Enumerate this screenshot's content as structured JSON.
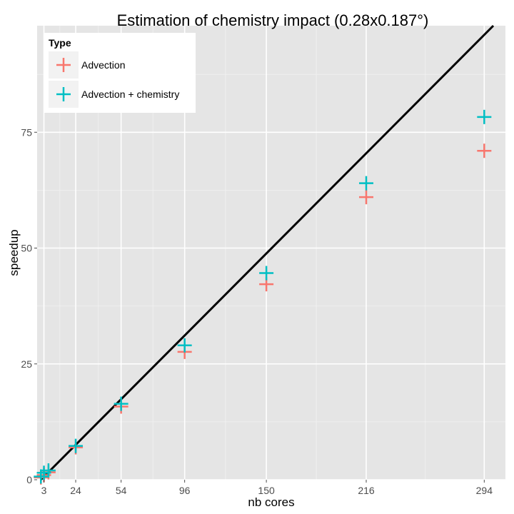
{
  "chart_data": {
    "type": "scatter",
    "title": "Estimation of chemistry impact (0.28x0.187°)",
    "xlabel": "nb cores",
    "ylabel": "speedup",
    "x_ticks": [
      3,
      24,
      54,
      96,
      150,
      216,
      294
    ],
    "y_ticks": [
      0,
      25,
      50,
      75
    ],
    "xlim": [
      -1.5,
      308
    ],
    "ylim": [
      0,
      98
    ],
    "grid": true,
    "legend": {
      "title": "Type",
      "position": "top-left"
    },
    "series": [
      {
        "name": "Advection",
        "color": "#F8766D",
        "marker": "plus",
        "x": [
          1,
          3,
          6,
          24,
          54,
          96,
          150,
          216,
          294
        ],
        "y": [
          0.5,
          1.0,
          1.6,
          7.0,
          15.8,
          27.6,
          42.2,
          61.0,
          71.0
        ]
      },
      {
        "name": "Advection + chemistry",
        "color": "#00BFC4",
        "marker": "plus",
        "x": [
          1,
          3,
          6,
          24,
          54,
          96,
          150,
          216,
          294
        ],
        "y": [
          0.7,
          1.5,
          2.0,
          7.3,
          16.4,
          29.0,
          44.6,
          64.0,
          78.3
        ]
      }
    ],
    "reference_line": {
      "color": "#000000",
      "x": [
        1,
        300
      ],
      "y": [
        0,
        98
      ]
    },
    "colors": {
      "panel_background": "#E5E5E5",
      "grid_major": "#FFFFFF",
      "grid_minor": "#F2F2F2"
    }
  }
}
